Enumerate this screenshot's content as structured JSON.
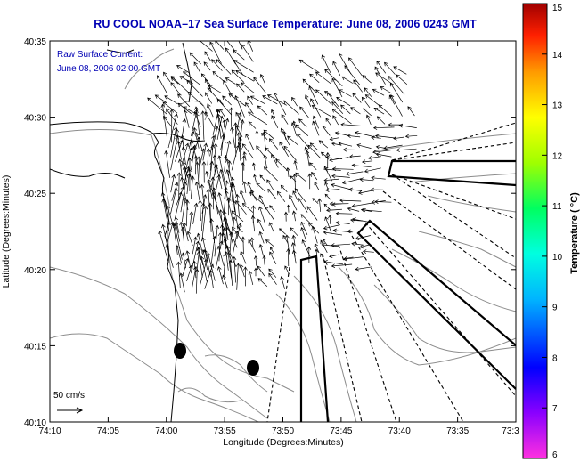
{
  "title": "RU COOL  NOAA–17  Sea Surface Temperature:  June 08, 2006 0243 GMT",
  "legend": {
    "line1": "Raw Surface Current:",
    "line2": "June 08, 2006 02:00 GMT"
  },
  "scale": {
    "label": "50 cm/s"
  },
  "axes": {
    "xlabel": "Longitude (Degrees:Minutes)",
    "ylabel": "Latitude (Degrees:Minutes)",
    "xticks": [
      "74:10",
      "74:05",
      "74:00",
      "73:55",
      "73:50",
      "73:45",
      "73:40",
      "73:35",
      "73:3"
    ],
    "yticks": [
      "40:35",
      "40:30",
      "40:25",
      "40:20",
      "40:15",
      "40:10"
    ]
  },
  "colorbar": {
    "label": "Temperature ( °C)",
    "ticks": [
      "15",
      "14",
      "13",
      "12",
      "11",
      "10",
      "9",
      "8",
      "7",
      "6"
    ],
    "min": 6,
    "max": 15,
    "colors": [
      "#ff30e0",
      "#8a00ff",
      "#0000ff",
      "#00b4ff",
      "#00ffe0",
      "#00ff60",
      "#a0ff00",
      "#ffff00",
      "#ff9a00",
      "#ff2000",
      "#a00000"
    ]
  }
}
